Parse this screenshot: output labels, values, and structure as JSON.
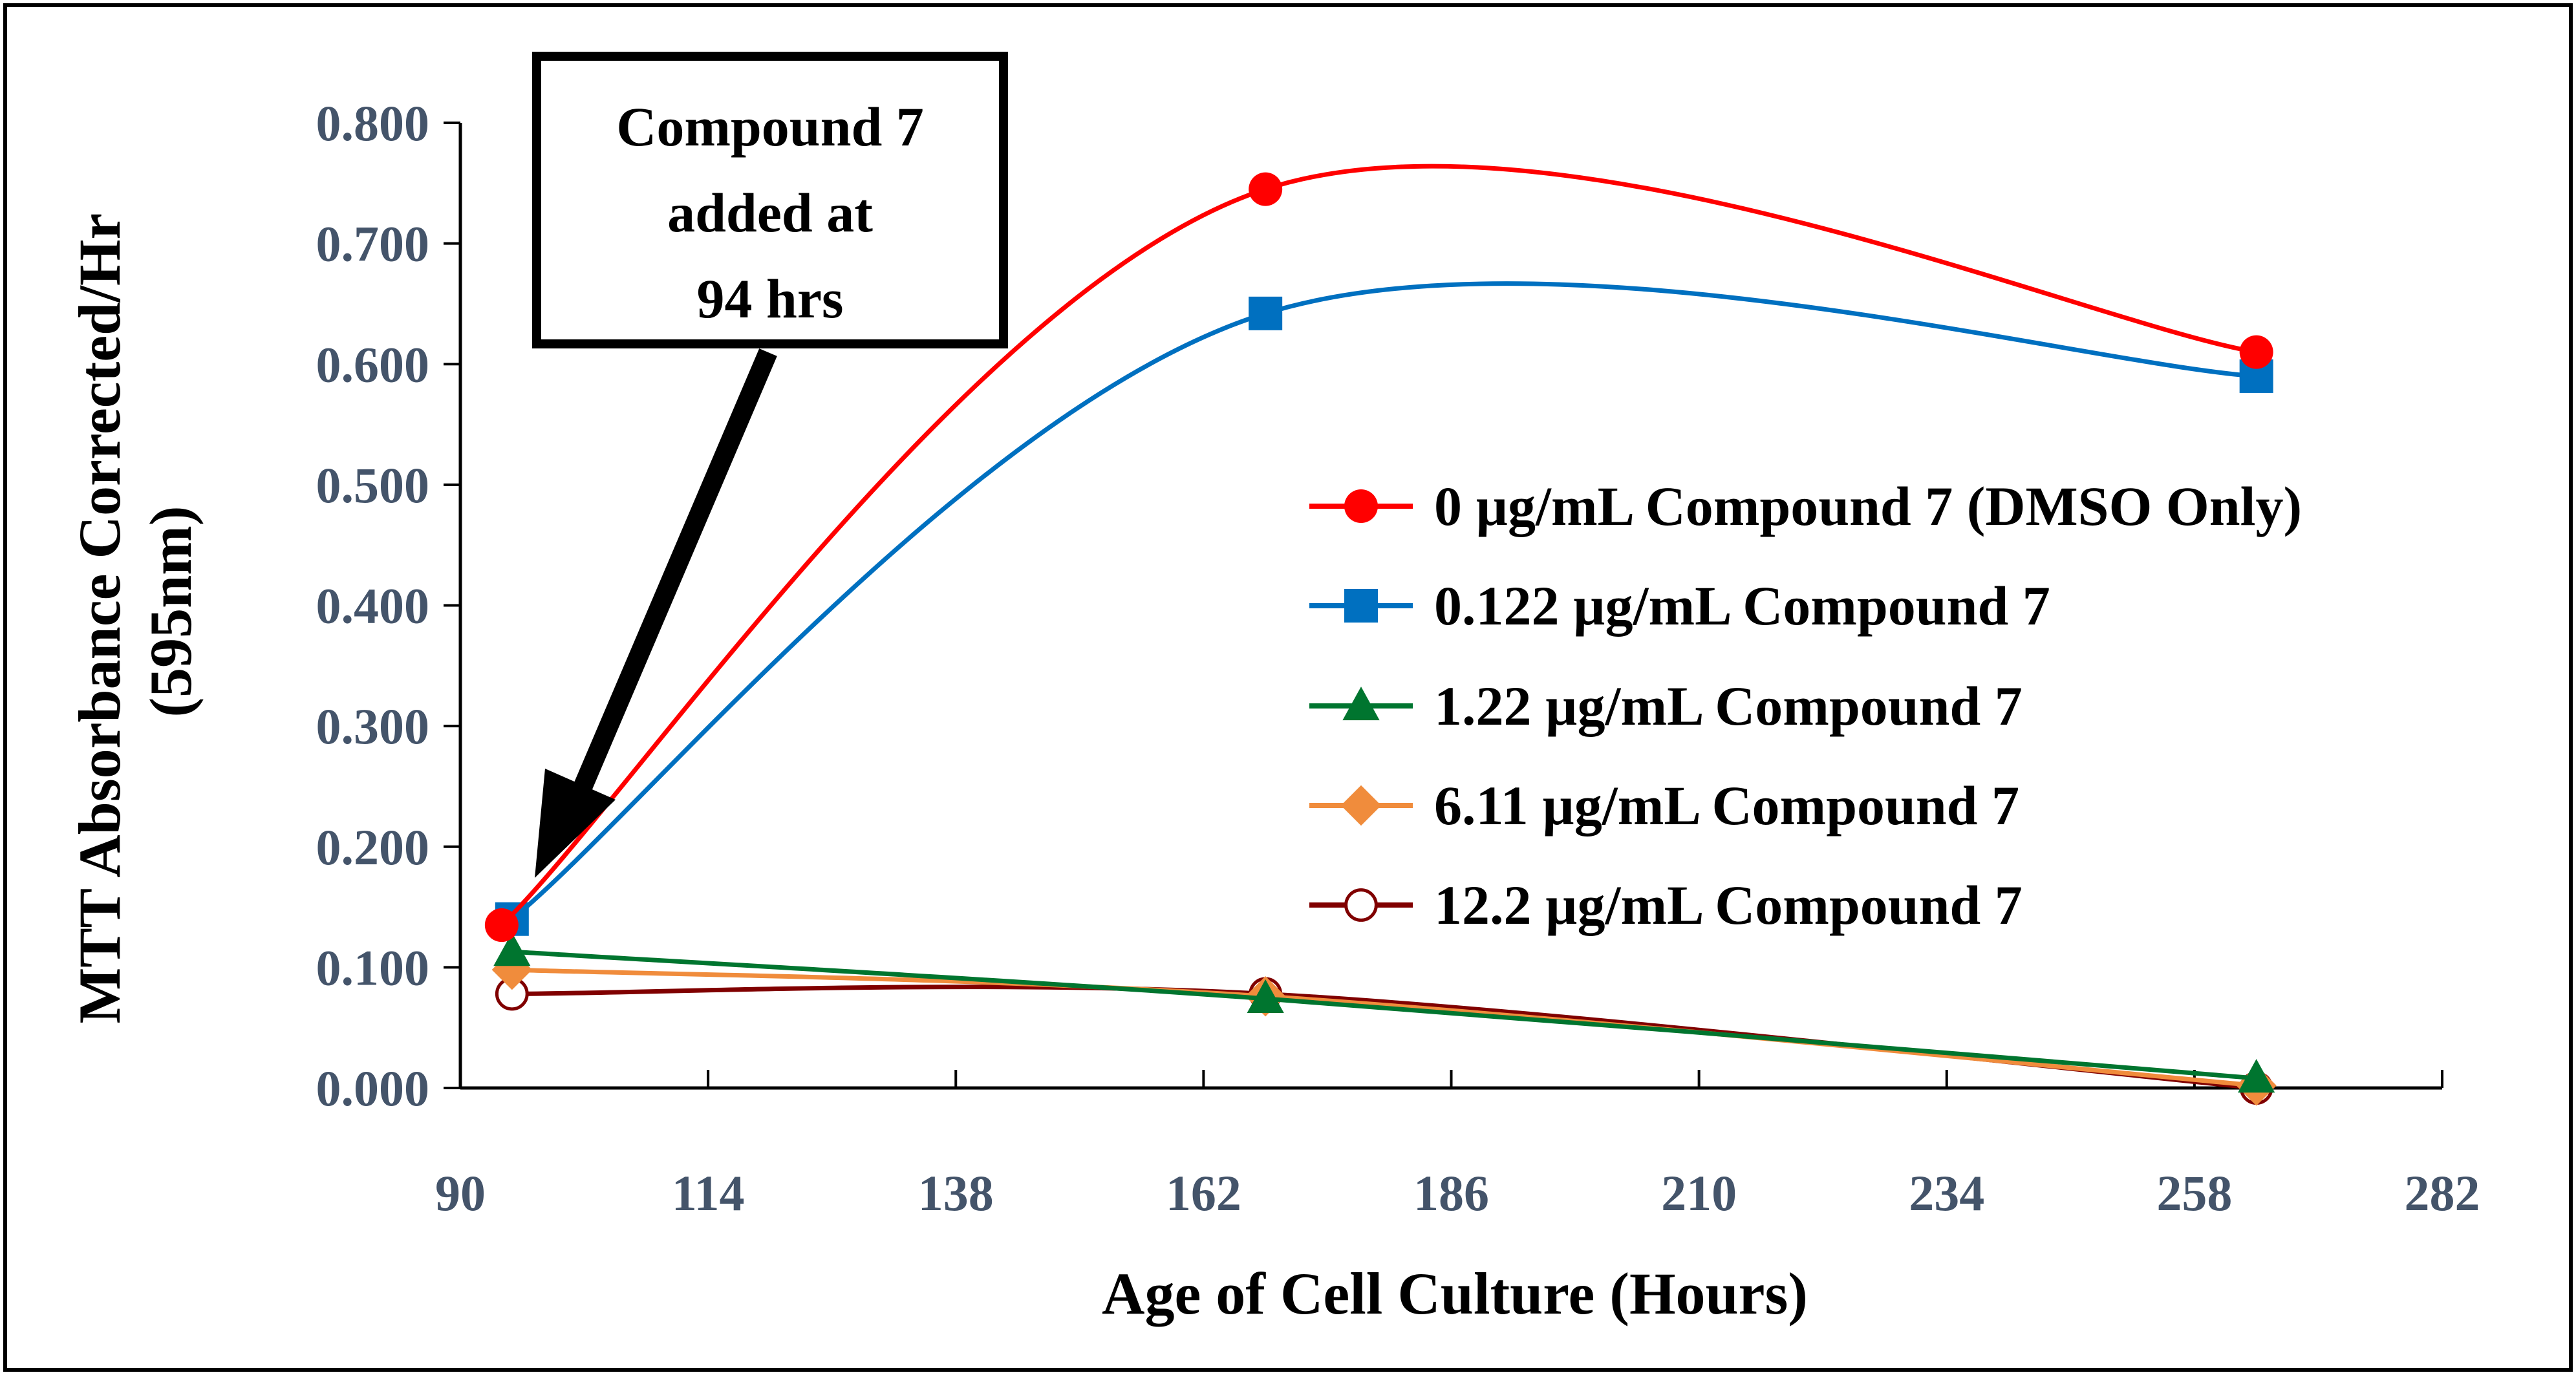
{
  "chart_data": {
    "type": "line",
    "title": "",
    "xlabel": "Age of Cell Culture (Hours)",
    "ylabel": [
      "MTT Absorbance Corrected/Hr",
      "(595nm)"
    ],
    "xlim": [
      90,
      282
    ],
    "ylim": [
      0,
      0.8
    ],
    "x_ticks": [
      "90",
      "114",
      "138",
      "162",
      "186",
      "210",
      "234",
      "258",
      "282"
    ],
    "y_ticks": [
      "0.000",
      "0.100",
      "0.200",
      "0.300",
      "0.400",
      "0.500",
      "0.600",
      "0.700",
      "0.800"
    ],
    "x_tick_values": [
      90,
      114,
      138,
      162,
      186,
      210,
      234,
      258,
      282
    ],
    "y_tick_values": [
      0,
      0.1,
      0.2,
      0.3,
      0.4,
      0.5,
      0.6,
      0.7,
      0.8
    ],
    "legend_position": "right",
    "series": [
      {
        "name": "0 µg/mL Compound 7 (DMSO Only)",
        "color": "#ff0000",
        "marker": "circle",
        "x": [
          94,
          168,
          264
        ],
        "values": [
          0.135,
          0.745,
          0.61
        ]
      },
      {
        "name": "0.122 µg/mL Compound 7",
        "color": "#0070c0",
        "marker": "square",
        "x": [
          95,
          168,
          264
        ],
        "values": [
          0.14,
          0.642,
          0.59
        ]
      },
      {
        "name": "1.22 µg/mL Compound 7",
        "color": "#00752f",
        "marker": "triangle",
        "x": [
          95,
          168,
          264
        ],
        "values": [
          0.113,
          0.074,
          0.008
        ]
      },
      {
        "name": "6.11 µg/mL Compound 7",
        "color": "#f08c3c",
        "marker": "diamond",
        "x": [
          95,
          168,
          264
        ],
        "values": [
          0.098,
          0.076,
          0.002
        ]
      },
      {
        "name": "12.2 µg/mL Compound 7",
        "color": "#800000",
        "marker": "open-circle",
        "x": [
          95,
          168,
          264
        ],
        "values": [
          0.078,
          0.078,
          0.0
        ]
      }
    ],
    "annotation": {
      "lines": [
        "Compound 7",
        "added at",
        "94 hrs"
      ],
      "points_to_x": 94
    }
  }
}
